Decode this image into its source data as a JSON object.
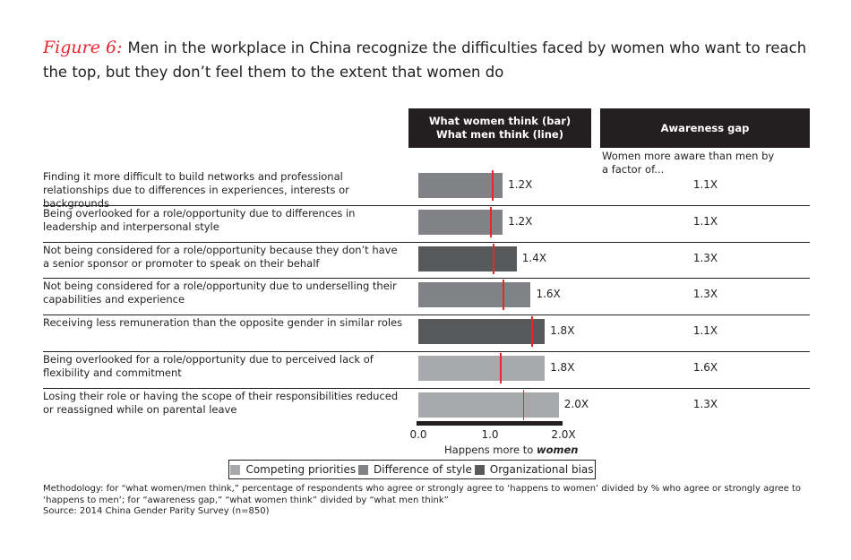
{
  "header": {
    "figure_label": "Figure 6:",
    "title": "Men in the workplace in China recognize the difficulties faced by women who want to reach the top, but they don’t feel them to the extent that women do"
  },
  "columns": {
    "think_line1": "What women think (bar)",
    "think_line2": "What men think (line)",
    "gap_header": "Awareness gap",
    "gap_note": "Women more aware than men by a factor of..."
  },
  "colors": {
    "competing": "#a7a9ac",
    "style": "#808285",
    "org": "#58595b",
    "men_line": "#e8262e"
  },
  "chart_data": {
    "type": "bar",
    "orientation": "horizontal",
    "xlim": [
      0,
      2.0
    ],
    "x_ticks": [
      "0.0",
      "1.0",
      "2.0X"
    ],
    "xlabel_prefix": "Happens more to ",
    "xlabel_emph": "women",
    "legend": [
      {
        "key": "competing",
        "label": "Competing priorities"
      },
      {
        "key": "style",
        "label": "Difference of style"
      },
      {
        "key": "org",
        "label": "Organizational bias"
      }
    ],
    "rows": [
      {
        "label": "Finding it more difficult to build networks and professional relationships due to differences in experiences, interests or backgrounds",
        "category": "style",
        "women": 1.2,
        "women_label": "1.2X",
        "men": 1.03,
        "gap": "1.1X"
      },
      {
        "label": "Being overlooked for a role/opportunity due to differences in leadership and interpersonal style",
        "category": "style",
        "women": 1.2,
        "women_label": "1.2X",
        "men": 1.0,
        "gap": "1.1X"
      },
      {
        "label": "Not being considered for a role/opportunity because they don’t have a senior sponsor or promoter to speak on their behalf",
        "category": "org",
        "women": 1.4,
        "women_label": "1.4X",
        "men": 1.04,
        "gap": "1.3X"
      },
      {
        "label": "Not being considered for a role/opportunity due to underselling their capabilities and experience",
        "category": "style",
        "women": 1.6,
        "women_label": "1.6X",
        "men": 1.18,
        "gap": "1.3X"
      },
      {
        "label": "Receiving less remuneration than the opposite gender in similar roles",
        "category": "org",
        "women": 1.8,
        "women_label": "1.8X",
        "men": 1.58,
        "gap": "1.1X"
      },
      {
        "label": "Being overlooked for a role/opportunity due to perceived lack of flexibility and commitment",
        "category": "competing",
        "women": 1.8,
        "women_label": "1.8X",
        "men": 1.14,
        "gap": "1.6X"
      },
      {
        "label": "Losing their role or having the scope of their responsibilities reduced or reassigned while on parental leave",
        "category": "competing",
        "women": 2.0,
        "women_label": "2.0X",
        "men": 1.46,
        "gap": "1.3X"
      }
    ]
  },
  "footer": {
    "methodology": "Methodology: for “what women/men think,” percentage of respondents who agree or strongly agree to ‘happens to women’ divided by % who agree or strongly agree to ‘happens to men’; for “awareness gap,” “what women think” divided by “what men think”",
    "source": "Source: 2014 China Gender Parity Survey (n=850)"
  }
}
